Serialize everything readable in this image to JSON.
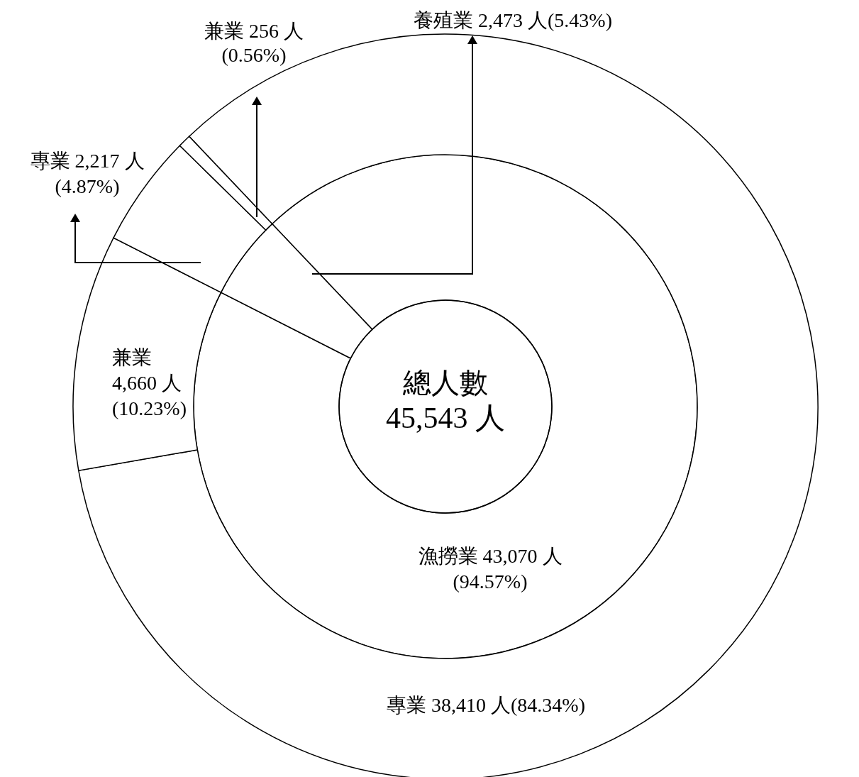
{
  "chart_data": [
    {
      "type": "donut",
      "title": "總人數",
      "subtitle": "45,543 人",
      "categories": [
        "漁撈業",
        "養殖業"
      ],
      "values": [
        43070,
        2473
      ],
      "colors": [
        "#ffffff",
        "#ffffff"
      ],
      "value_labels": [
        "43,070 人(94.57%)",
        "2,473 人(5.43%)"
      ]
    },
    {
      "type": "donut",
      "categories": [
        "專業",
        "兼業",
        "專業",
        "兼業"
      ],
      "values": [
        38410,
        4660,
        2217,
        256
      ],
      "colors": [
        "#ffffff",
        "#ffffff",
        "#ffffff",
        "#ffffff"
      ],
      "value_labels": [
        "38,410 人(84.34%)",
        "4,660 人(10.23%)",
        "2,217 人(4.87%)",
        "256 人(0.56%)"
      ]
    }
  ]
}
